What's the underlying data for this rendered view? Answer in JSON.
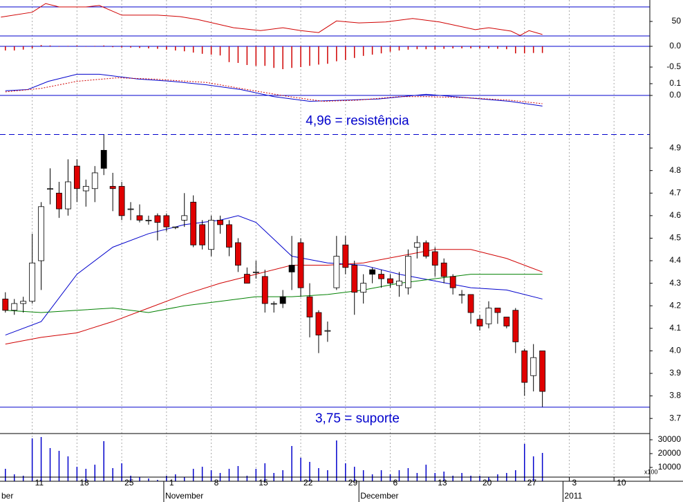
{
  "chart_data": [
    {
      "type": "line",
      "ylim": [
        5.7,
        94.3
      ],
      "yticks": [
        50
      ],
      "levels": [
        20,
        80
      ],
      "series": [
        {
          "color": "#d00000",
          "x": [
            -0.5,
            3,
            4.5,
            6,
            9,
            10.5,
            13,
            17,
            19.5,
            21.5,
            25.5,
            28.5,
            31,
            33,
            35,
            37,
            39.5,
            42.5,
            45.5,
            48.5,
            52.5,
            54,
            56.5,
            57.5,
            58.5,
            60
          ],
          "values": [
            59,
            69,
            87,
            80,
            80,
            83,
            63,
            63,
            60,
            54,
            37,
            31,
            37,
            31,
            27,
            51,
            47,
            49,
            56,
            49,
            33,
            37,
            30,
            21,
            31,
            23
          ]
        }
      ]
    },
    {
      "type": "bar",
      "ylim": [
        -0.633,
        0.083
      ],
      "yticks": [
        {
          "value": 0,
          "label": "0.0"
        },
        {
          "value": -0.5,
          "label": "-0.5"
        }
      ],
      "levels": [
        0
      ],
      "color": "#d00000",
      "values": [
        -0.1,
        -0.1,
        -0.08,
        -0.05,
        0.03,
        0.02,
        -0.01,
        0.01,
        0.02,
        -0.01,
        0.01,
        0.02,
        -0.02,
        -0.03,
        -0.03,
        -0.04,
        -0.05,
        -0.06,
        -0.08,
        -0.1,
        -0.12,
        -0.15,
        -0.18,
        -0.2,
        -0.22,
        -0.38,
        -0.4,
        -0.45,
        -0.47,
        -0.47,
        -0.52,
        -0.55,
        -0.52,
        -0.5,
        -0.47,
        -0.44,
        -0.42,
        -0.36,
        -0.33,
        -0.28,
        -0.23,
        -0.2,
        -0.17,
        -0.13,
        -0.1,
        -0.08,
        -0.07,
        -0.07,
        -0.08,
        -0.06,
        -0.05,
        -0.05,
        -0.05,
        -0.05,
        -0.05,
        -0.06,
        -0.07,
        -0.17,
        -0.17,
        -0.16,
        -0.16
      ]
    },
    {
      "type": "line",
      "ylim": [
        -0.129,
        0.194
      ],
      "yticks": [
        0.1,
        {
          "value": 0,
          "label": "0.0"
        }
      ],
      "levels": [
        0
      ],
      "series": [
        {
          "color": "#0000cc",
          "x": [
            0,
            2.5,
            4.8,
            8,
            10.5,
            14.8,
            18.6,
            22.5,
            26.3,
            30,
            34,
            37.8,
            41.7,
            47,
            51.7,
            56.3,
            60
          ],
          "values": [
            0.04,
            0.05,
            0.12,
            0.18,
            0.18,
            0.14,
            0.12,
            0.09,
            0.05,
            -0.01,
            -0.05,
            -0.04,
            -0.03,
            0.01,
            -0.02,
            -0.05,
            -0.09
          ]
        },
        {
          "color": "#d00000",
          "dash": true,
          "x": [
            0,
            4,
            8,
            12.5,
            16.3,
            22.5,
            27,
            31.7,
            35.5,
            39.4,
            44,
            47,
            51.7,
            56.3,
            60
          ],
          "values": [
            0.03,
            0.06,
            0.12,
            0.15,
            0.14,
            0.11,
            0.05,
            -0.01,
            -0.05,
            -0.04,
            -0.01,
            -0.01,
            -0.02,
            -0.04,
            -0.07
          ]
        }
      ]
    },
    {
      "type": "candlestick",
      "ylim": [
        3.633,
        5.066
      ],
      "yticks": [
        4.9,
        4.8,
        4.7,
        4.6,
        4.5,
        4.4,
        4.3,
        4.2,
        4.1,
        {
          "value": 4,
          "label": "4.0"
        },
        3.9,
        3.8,
        3.7
      ],
      "open": [
        4.23,
        4.18,
        4.21,
        4.22,
        4.4,
        4.72,
        4.7,
        4.63,
        4.82,
        4.71,
        4.72,
        4.81,
        4.73,
        4.73,
        4.63,
        4.6,
        4.58,
        4.6,
        4.6,
        4.55,
        4.58,
        4.66,
        4.56,
        4.45,
        4.58,
        4.56,
        4.48,
        4.34,
        4.35,
        4.33,
        4.21,
        4.21,
        4.35,
        4.48,
        4.24,
        4.17,
        4.09,
        4.28,
        4.47,
        4.38,
        4.26,
        4.34,
        4.34,
        4.32,
        4.29,
        4.28,
        4.46,
        4.48,
        4.44,
        4.39,
        4.33,
        4.25,
        4.25,
        4.14,
        4.12,
        4.19,
        4.15,
        4.18,
        4.0,
        3.89,
        4.0
      ],
      "close": [
        4.18,
        4.21,
        4.22,
        4.39,
        4.64,
        4.72,
        4.63,
        4.75,
        4.72,
        4.73,
        4.79,
        4.89,
        4.72,
        4.6,
        4.63,
        4.58,
        4.58,
        4.57,
        4.55,
        4.55,
        4.6,
        4.47,
        4.47,
        4.58,
        4.56,
        4.46,
        4.38,
        4.3,
        4.35,
        4.21,
        4.21,
        4.24,
        4.38,
        4.28,
        4.15,
        4.07,
        4.09,
        4.42,
        4.37,
        4.26,
        4.3,
        4.36,
        4.32,
        4.3,
        4.31,
        4.42,
        4.48,
        4.42,
        4.38,
        4.33,
        4.28,
        4.25,
        4.17,
        4.11,
        4.19,
        4.17,
        4.11,
        4.04,
        3.86,
        3.97,
        3.82
      ],
      "high": [
        4.26,
        4.23,
        4.24,
        4.52,
        4.66,
        4.81,
        4.75,
        4.85,
        4.85,
        4.76,
        4.82,
        4.96,
        4.79,
        4.75,
        4.66,
        4.65,
        4.6,
        4.61,
        4.61,
        4.55,
        4.7,
        4.69,
        4.58,
        4.6,
        4.6,
        4.58,
        4.5,
        4.37,
        4.4,
        4.36,
        4.22,
        4.27,
        4.51,
        4.5,
        4.3,
        4.18,
        4.13,
        4.51,
        4.51,
        4.4,
        4.34,
        4.37,
        4.36,
        4.34,
        4.35,
        4.45,
        4.51,
        4.49,
        4.46,
        4.41,
        4.34,
        4.27,
        4.25,
        4.16,
        4.22,
        4.19,
        4.15,
        4.19,
        4.01,
        4.03,
        4.0
      ],
      "low": [
        4.17,
        4.16,
        4.17,
        4.21,
        4.27,
        4.65,
        4.59,
        4.6,
        4.66,
        4.64,
        4.66,
        4.78,
        4.62,
        4.58,
        4.58,
        4.57,
        4.56,
        4.49,
        4.53,
        4.54,
        4.55,
        4.46,
        4.45,
        4.42,
        4.52,
        4.42,
        4.35,
        4.3,
        4.32,
        4.17,
        4.17,
        4.19,
        4.27,
        4.24,
        4.06,
        3.99,
        4.04,
        4.27,
        4.34,
        4.16,
        4.21,
        4.3,
        4.28,
        4.28,
        4.24,
        4.25,
        4.41,
        4.41,
        4.33,
        4.3,
        4.25,
        4.21,
        4.12,
        4.09,
        4.1,
        4.12,
        4.1,
        3.99,
        3.8,
        3.82,
        3.75
      ],
      "colors": [
        "#e00000",
        "#ffffff",
        "#ffffff",
        "#ffffff",
        "#ffffff",
        "#ffffff",
        "#e00000",
        "#ffffff",
        "#e00000",
        "#ffffff",
        "#ffffff",
        "#000000",
        "#e00000",
        "#e00000",
        "#ffffff",
        "#e00000",
        "#ffffff",
        "#e00000",
        "#e00000",
        "#ffffff",
        "#ffffff",
        "#e00000",
        "#e00000",
        "#ffffff",
        "#e00000",
        "#e00000",
        "#e00000",
        "#e00000",
        "#ffffff",
        "#e00000",
        "#ffffff",
        "#000000",
        "#000000",
        "#e00000",
        "#e00000",
        "#e00000",
        "#ffffff",
        "#ffffff",
        "#e00000",
        "#e00000",
        "#ffffff",
        "#000000",
        "#e00000",
        "#e00000",
        "#ffffff",
        "#ffffff",
        "#ffffff",
        "#e00000",
        "#e00000",
        "#e00000",
        "#e00000",
        "#ffffff",
        "#e00000",
        "#e00000",
        "#ffffff",
        "#e00000",
        "#e00000",
        "#e00000",
        "#e00000",
        "#ffffff",
        "#e00000"
      ],
      "series": [
        {
          "color": "#0000cc",
          "x": [
            0,
            4,
            8,
            12,
            16,
            20,
            24,
            26,
            28,
            32,
            36,
            40,
            44,
            48,
            52,
            56,
            60
          ],
          "values": [
            4.07,
            4.13,
            4.34,
            4.46,
            4.52,
            4.56,
            4.58,
            4.6,
            4.57,
            4.42,
            4.39,
            4.38,
            4.34,
            4.31,
            4.28,
            4.27,
            4.23
          ]
        },
        {
          "color": "#d00000",
          "x": [
            0,
            4,
            8,
            12,
            16,
            20,
            24,
            28,
            32,
            36,
            40,
            44,
            48,
            52,
            56,
            60
          ],
          "values": [
            4.03,
            4.06,
            4.08,
            4.13,
            4.19,
            4.25,
            4.3,
            4.34,
            4.38,
            4.38,
            4.39,
            4.42,
            4.45,
            4.45,
            4.41,
            4.35
          ]
        },
        {
          "color": "#008000",
          "x": [
            0,
            4,
            8,
            12,
            16,
            20,
            24,
            28,
            32,
            36,
            40,
            44,
            48,
            52,
            56,
            60
          ],
          "values": [
            4.18,
            4.17,
            4.18,
            4.19,
            4.17,
            4.2,
            4.22,
            4.24,
            4.24,
            4.25,
            4.27,
            4.3,
            4.32,
            4.34,
            4.34,
            4.34
          ]
        }
      ],
      "annotations": [
        {
          "value": 4.96,
          "label": "4,96 = resistência",
          "dashed": true
        },
        {
          "value": 3.75,
          "label": "3,75 = suporte",
          "dashed": false
        }
      ]
    },
    {
      "type": "bar",
      "ylim": [
        0,
        34500
      ],
      "yticks": [
        30000,
        20000,
        10000
      ],
      "color": "#0000cc",
      "note": "x100",
      "values": [
        9000,
        5000,
        4000,
        31000,
        32000,
        24000,
        22000,
        18000,
        10500,
        9000,
        12000,
        29000,
        9500,
        13000,
        4000,
        3000,
        2000,
        1000,
        4000,
        5000,
        3000,
        9000,
        10500,
        8000,
        6000,
        9000,
        11000,
        4000,
        9000,
        13000,
        6000,
        8000,
        25500,
        17000,
        14000,
        9500,
        8000,
        29500,
        13000,
        10500,
        8000,
        5000,
        8000,
        5000,
        8000,
        9500,
        6000,
        12000,
        6000,
        7000,
        4000,
        6000,
        4000,
        4000,
        3000,
        5000,
        6000,
        8000,
        27000,
        18000,
        20500
      ],
      "xlim": [
        -0.6,
        72
      ],
      "xticks": [
        {
          "value": 3,
          "label": "11"
        },
        {
          "value": 8,
          "label": "18"
        },
        {
          "value": 13,
          "label": "25"
        },
        {
          "value": 18,
          "label": "1"
        },
        {
          "value": 23,
          "label": "8"
        },
        {
          "value": 28,
          "label": "15"
        },
        {
          "value": 33,
          "label": "22"
        },
        {
          "value": 38,
          "label": "29"
        },
        {
          "value": 43,
          "label": "6"
        },
        {
          "value": 48,
          "label": "13"
        },
        {
          "value": 53,
          "label": "20"
        },
        {
          "value": 58,
          "label": "27"
        },
        {
          "value": 63,
          "label": "3"
        },
        {
          "value": 68,
          "label": "10"
        }
      ],
      "months": [
        {
          "value": -0.6,
          "label": "ber"
        },
        {
          "value": 17.7,
          "label": "November"
        },
        {
          "value": 39.5,
          "label": "December"
        },
        {
          "value": 62.3,
          "label": "2011"
        }
      ]
    }
  ]
}
